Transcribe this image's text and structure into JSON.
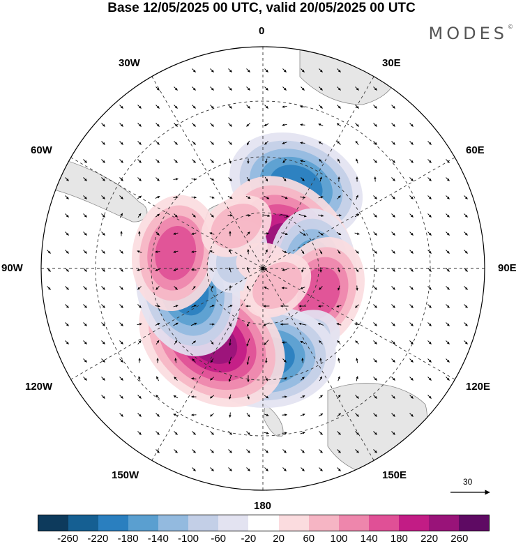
{
  "title": "Base 12/05/2025 00 UTC, valid 20/05/2025 00 UTC",
  "brand": "MODES",
  "brand_mark": "©",
  "longitude_labels": {
    "lon_0": "0",
    "lon_30e": "30E",
    "lon_60e": "60E",
    "lon_90e": "90E",
    "lon_120e": "120E",
    "lon_150e": "150E",
    "lon_180": "180",
    "lon_150w": "150W",
    "lon_120w": "120W",
    "lon_90w": "90W",
    "lon_60w": "60W",
    "lon_30w": "30W"
  },
  "reference_vector": "30",
  "colorbar": {
    "colors": [
      "#0d3a5c",
      "#155f92",
      "#2a7fbf",
      "#5a9fd0",
      "#93badf",
      "#c3cfe7",
      "#e3e3f1",
      "#ffffff",
      "#fbdcdf",
      "#f6b5c4",
      "#ee86ac",
      "#e05096",
      "#c21c85",
      "#991379",
      "#5e0a63"
    ],
    "labels": [
      "-260",
      "-220",
      "-180",
      "-140",
      "-100",
      "-60",
      "-20",
      "20",
      "60",
      "100",
      "140",
      "180",
      "220",
      "260"
    ]
  },
  "anomaly_centers": [
    {
      "lon": 22,
      "colat": 58,
      "value": -180
    },
    {
      "lon": 52,
      "colat": 78,
      "value": 240
    },
    {
      "lon": 88,
      "colat": 72,
      "value": -170
    },
    {
      "lon": 114,
      "colat": 68,
      "value": 150
    },
    {
      "lon": 150,
      "colat": 60,
      "value": -90
    },
    {
      "lon": 177,
      "colat": 58,
      "value": -190
    },
    {
      "lon": -145,
      "colat": 58,
      "value": 250
    },
    {
      "lon": -105,
      "colat": 62,
      "value": -210
    },
    {
      "lon": -80,
      "colat": 58,
      "value": 150
    },
    {
      "lon": -65,
      "colat": 80,
      "value": -80
    },
    {
      "lon": -32,
      "colat": 72,
      "value": 60
    },
    {
      "lon": 5,
      "colat": 88,
      "value": 40
    },
    {
      "lon": 140,
      "colat": 82,
      "value": 60
    }
  ]
}
